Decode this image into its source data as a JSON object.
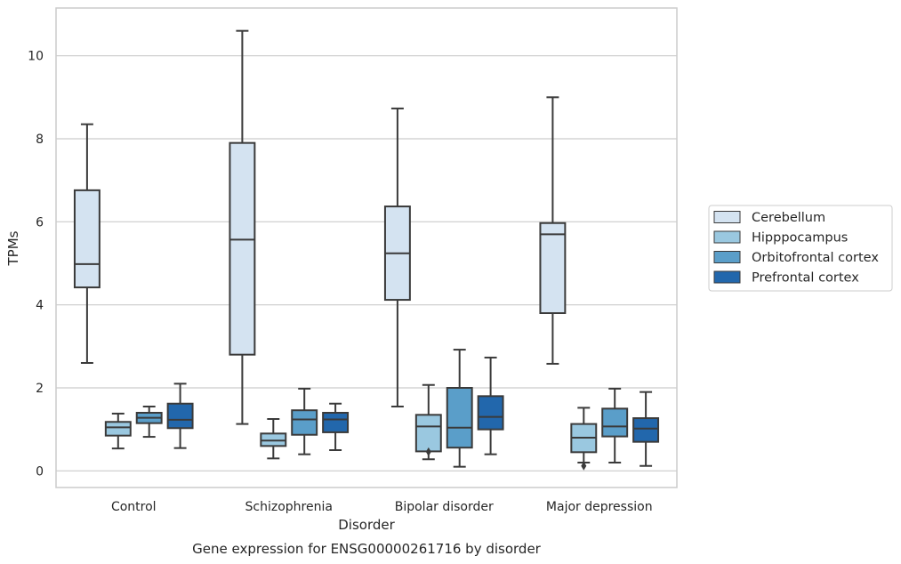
{
  "chart_data": {
    "type": "box",
    "title": "Gene expression for ENSG00000261716 by disorder",
    "xlabel": "Disorder",
    "ylabel": "TPMs",
    "categories": [
      "Control",
      "Schizophrenia",
      "Bipolar disorder",
      "Major depression"
    ],
    "ylim": [
      -0.4,
      11.15
    ],
    "yticks": [
      0,
      2,
      4,
      6,
      8,
      10
    ],
    "grid": true,
    "legend_position": "right",
    "series": [
      {
        "name": "Cerebellum",
        "color": "#d4e3f1",
        "boxes": [
          {
            "whisker_low": 2.6,
            "q1": 4.42,
            "median": 4.98,
            "q3": 6.76,
            "whisker_high": 8.35,
            "outliers": []
          },
          {
            "whisker_low": 1.13,
            "q1": 2.8,
            "median": 5.57,
            "q3": 7.9,
            "whisker_high": 10.6,
            "outliers": []
          },
          {
            "whisker_low": 1.55,
            "q1": 4.12,
            "median": 5.24,
            "q3": 6.37,
            "whisker_high": 8.73,
            "outliers": []
          },
          {
            "whisker_low": 2.58,
            "q1": 3.8,
            "median": 5.7,
            "q3": 5.97,
            "whisker_high": 9.0,
            "outliers": []
          }
        ]
      },
      {
        "name": "Hipppocampus",
        "color": "#9ac8e0",
        "boxes": [
          {
            "whisker_low": 0.54,
            "q1": 0.85,
            "median": 1.05,
            "q3": 1.18,
            "whisker_high": 1.38,
            "outliers": []
          },
          {
            "whisker_low": 0.3,
            "q1": 0.6,
            "median": 0.73,
            "q3": 0.9,
            "whisker_high": 1.25,
            "outliers": []
          },
          {
            "whisker_low": 0.28,
            "q1": 0.47,
            "median": 1.07,
            "q3": 1.35,
            "whisker_high": 2.07,
            "outliers": [
              0.46
            ]
          },
          {
            "whisker_low": 0.2,
            "q1": 0.45,
            "median": 0.8,
            "q3": 1.13,
            "whisker_high": 1.52,
            "outliers": [
              0.12
            ]
          }
        ]
      },
      {
        "name": "Orbitofrontal cortex",
        "color": "#5a9ec9",
        "boxes": [
          {
            "whisker_low": 0.82,
            "q1": 1.15,
            "median": 1.28,
            "q3": 1.4,
            "whisker_high": 1.55,
            "outliers": []
          },
          {
            "whisker_low": 0.4,
            "q1": 0.87,
            "median": 1.24,
            "q3": 1.46,
            "whisker_high": 1.98,
            "outliers": []
          },
          {
            "whisker_low": 0.1,
            "q1": 0.56,
            "median": 1.04,
            "q3": 2.0,
            "whisker_high": 2.92,
            "outliers": []
          },
          {
            "whisker_low": 0.2,
            "q1": 0.83,
            "median": 1.07,
            "q3": 1.5,
            "whisker_high": 1.98,
            "outliers": []
          }
        ]
      },
      {
        "name": "Prefrontal cortex",
        "color": "#2267ac",
        "boxes": [
          {
            "whisker_low": 0.55,
            "q1": 1.03,
            "median": 1.23,
            "q3": 1.62,
            "whisker_high": 2.1,
            "outliers": []
          },
          {
            "whisker_low": 0.5,
            "q1": 0.93,
            "median": 1.24,
            "q3": 1.4,
            "whisker_high": 1.62,
            "outliers": []
          },
          {
            "whisker_low": 0.4,
            "q1": 1.0,
            "median": 1.3,
            "q3": 1.8,
            "whisker_high": 2.73,
            "outliers": []
          },
          {
            "whisker_low": 0.12,
            "q1": 0.7,
            "median": 1.02,
            "q3": 1.27,
            "whisker_high": 1.9,
            "outliers": []
          }
        ]
      }
    ]
  }
}
